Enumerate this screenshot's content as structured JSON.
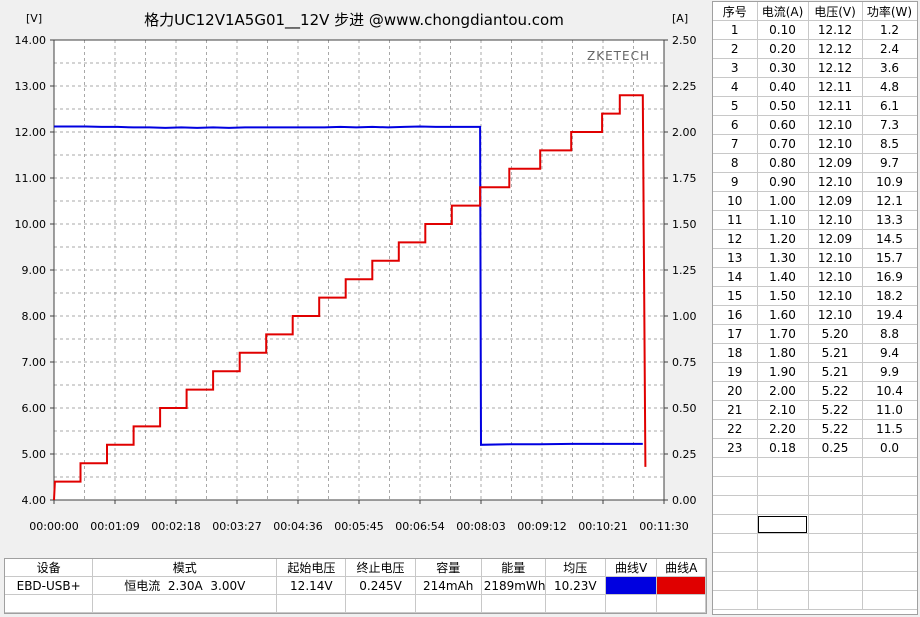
{
  "colors": {
    "voltage": "#0000e0",
    "current": "#e00000",
    "grid": "#a8a8a8",
    "plot_bg": "#ffffff"
  },
  "watermark": "ZKETECH",
  "chart_data": {
    "type": "line",
    "title": "格力UC12V1A5G01__12V 步进 @www.chongdiantou.com",
    "left_unit": "[V]",
    "right_unit": "[A]",
    "x_ticks": [
      "00:00:00",
      "00:01:09",
      "00:02:18",
      "00:03:27",
      "00:04:36",
      "00:05:45",
      "00:06:54",
      "00:08:03",
      "00:09:12",
      "00:10:21",
      "00:11:30"
    ],
    "x_range_seconds": [
      0,
      690
    ],
    "y_left_range": [
      4.0,
      14.0
    ],
    "y_left_ticks": [
      "14.00",
      "13.00",
      "12.00",
      "11.00",
      "10.00",
      "9.00",
      "8.00",
      "7.00",
      "6.00",
      "5.00",
      "4.00"
    ],
    "y_right_range": [
      0.0,
      2.5
    ],
    "y_right_ticks": [
      "2.50",
      "2.25",
      "2.00",
      "1.75",
      "1.50",
      "1.25",
      "1.00",
      "0.75",
      "0.50",
      "0.25",
      "0.00"
    ],
    "grid": true,
    "series": [
      {
        "name": "曲线V",
        "axis": "left",
        "points": [
          [
            0,
            12.12
          ],
          [
            18,
            12.12
          ],
          [
            36,
            12.12
          ],
          [
            54,
            12.11
          ],
          [
            72,
            12.11
          ],
          [
            90,
            12.1
          ],
          [
            108,
            12.1
          ],
          [
            126,
            12.09
          ],
          [
            144,
            12.1
          ],
          [
            162,
            12.09
          ],
          [
            180,
            12.1
          ],
          [
            198,
            12.09
          ],
          [
            216,
            12.1
          ],
          [
            234,
            12.1
          ],
          [
            252,
            12.1
          ],
          [
            270,
            12.1
          ],
          [
            288,
            12.1
          ],
          [
            306,
            12.1
          ],
          [
            324,
            12.11
          ],
          [
            342,
            12.1
          ],
          [
            360,
            12.11
          ],
          [
            378,
            12.1
          ],
          [
            396,
            12.11
          ],
          [
            414,
            12.12
          ],
          [
            432,
            12.11
          ],
          [
            450,
            12.11
          ],
          [
            482,
            12.11
          ],
          [
            483,
            5.2
          ],
          [
            515,
            5.21
          ],
          [
            550,
            5.21
          ],
          [
            585,
            5.22
          ],
          [
            620,
            5.22
          ],
          [
            650,
            5.22
          ],
          [
            666,
            5.22
          ]
        ]
      },
      {
        "name": "曲线A",
        "axis": "right",
        "points": [
          [
            0,
            0.0
          ],
          [
            1,
            0.1
          ],
          [
            30,
            0.1
          ],
          [
            30,
            0.2
          ],
          [
            60,
            0.2
          ],
          [
            60,
            0.3
          ],
          [
            90,
            0.3
          ],
          [
            90,
            0.4
          ],
          [
            120,
            0.4
          ],
          [
            120,
            0.5
          ],
          [
            150,
            0.5
          ],
          [
            150,
            0.6
          ],
          [
            180,
            0.6
          ],
          [
            180,
            0.7
          ],
          [
            210,
            0.7
          ],
          [
            210,
            0.8
          ],
          [
            240,
            0.8
          ],
          [
            240,
            0.9
          ],
          [
            270,
            0.9
          ],
          [
            270,
            1.0
          ],
          [
            300,
            1.0
          ],
          [
            300,
            1.1
          ],
          [
            330,
            1.1
          ],
          [
            330,
            1.2
          ],
          [
            360,
            1.2
          ],
          [
            360,
            1.3
          ],
          [
            390,
            1.3
          ],
          [
            390,
            1.4
          ],
          [
            420,
            1.4
          ],
          [
            420,
            1.5
          ],
          [
            450,
            1.5
          ],
          [
            450,
            1.6
          ],
          [
            482,
            1.6
          ],
          [
            482,
            1.7
          ],
          [
            515,
            1.7
          ],
          [
            515,
            1.8
          ],
          [
            550,
            1.8
          ],
          [
            550,
            1.9
          ],
          [
            585,
            1.9
          ],
          [
            585,
            2.0
          ],
          [
            620,
            2.0
          ],
          [
            620,
            2.1
          ],
          [
            640,
            2.1
          ],
          [
            640,
            2.2
          ],
          [
            666,
            2.2
          ],
          [
            669,
            0.18
          ]
        ]
      }
    ]
  },
  "summary": {
    "headers": [
      "设备",
      "模式",
      "起始电压",
      "终止电压",
      "容量",
      "能量",
      "均压",
      "曲线V",
      "曲线A"
    ],
    "row": [
      "EBD-USB+",
      "恒电流  2.30A  3.00V",
      "12.14V",
      "0.245V",
      "214mAh",
      "2189mWh",
      "10.23V"
    ]
  },
  "side_table": {
    "headers": [
      "序号",
      "电流(A)",
      "电压(V)",
      "功率(W)"
    ],
    "rows": [
      [
        "1",
        "0.10",
        "12.12",
        "1.2"
      ],
      [
        "2",
        "0.20",
        "12.12",
        "2.4"
      ],
      [
        "3",
        "0.30",
        "12.12",
        "3.6"
      ],
      [
        "4",
        "0.40",
        "12.11",
        "4.8"
      ],
      [
        "5",
        "0.50",
        "12.11",
        "6.1"
      ],
      [
        "6",
        "0.60",
        "12.10",
        "7.3"
      ],
      [
        "7",
        "0.70",
        "12.10",
        "8.5"
      ],
      [
        "8",
        "0.80",
        "12.09",
        "9.7"
      ],
      [
        "9",
        "0.90",
        "12.10",
        "10.9"
      ],
      [
        "10",
        "1.00",
        "12.09",
        "12.1"
      ],
      [
        "11",
        "1.10",
        "12.10",
        "13.3"
      ],
      [
        "12",
        "1.20",
        "12.09",
        "14.5"
      ],
      [
        "13",
        "1.30",
        "12.10",
        "15.7"
      ],
      [
        "14",
        "1.40",
        "12.10",
        "16.9"
      ],
      [
        "15",
        "1.50",
        "12.10",
        "18.2"
      ],
      [
        "16",
        "1.60",
        "12.10",
        "19.4"
      ],
      [
        "17",
        "1.70",
        "5.20",
        "8.8"
      ],
      [
        "18",
        "1.80",
        "5.21",
        "9.4"
      ],
      [
        "19",
        "1.90",
        "5.21",
        "9.9"
      ],
      [
        "20",
        "2.00",
        "5.22",
        "10.4"
      ],
      [
        "21",
        "2.10",
        "5.22",
        "11.0"
      ],
      [
        "22",
        "2.20",
        "5.22",
        "11.5"
      ],
      [
        "23",
        "0.18",
        "0.25",
        "0.0"
      ]
    ]
  }
}
